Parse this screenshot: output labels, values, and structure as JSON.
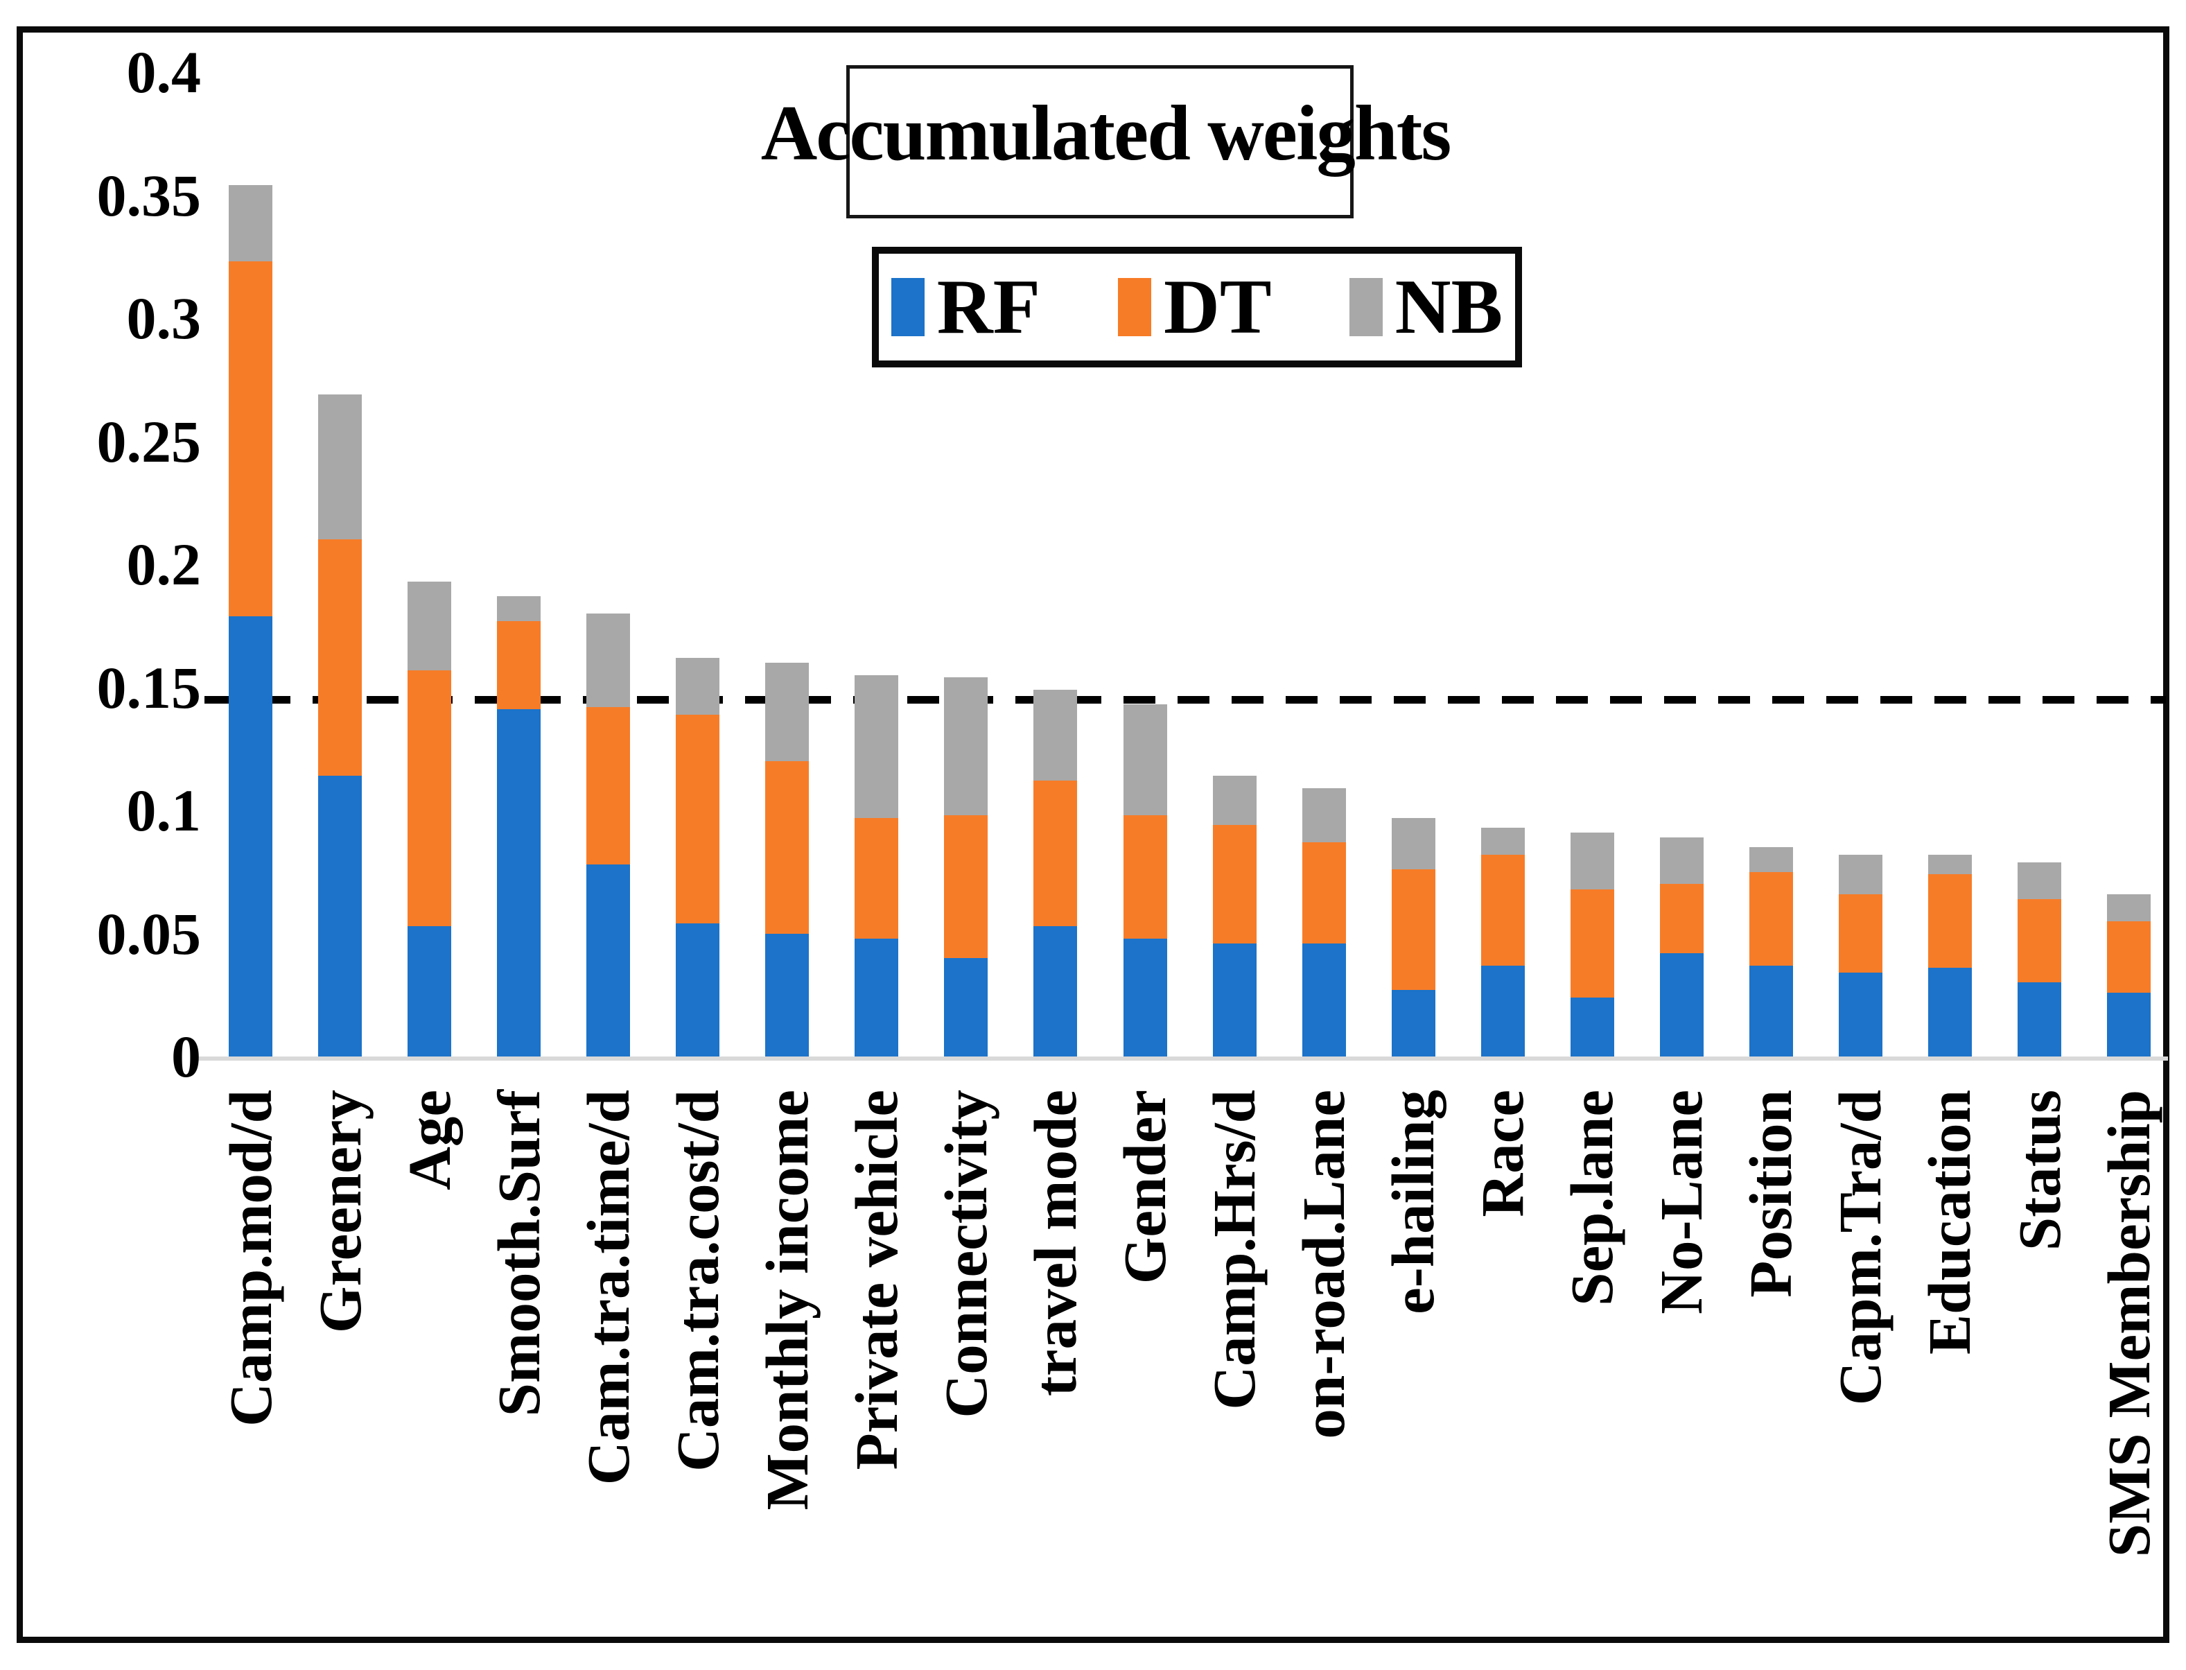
{
  "chart_data": {
    "type": "bar",
    "stacked": true,
    "title": "Accumulated weights",
    "xlabel": "",
    "ylabel": "",
    "ylim": [
      0,
      0.4
    ],
    "grid": false,
    "ytick_labels": [
      "0.4",
      "0.35",
      "0.3",
      "0.25",
      "0.2",
      "0.15",
      "0.1",
      "0.05",
      "0"
    ],
    "ytick_values": [
      0.4,
      0.35,
      0.3,
      0.25,
      0.2,
      0.15,
      0.1,
      0.05,
      0
    ],
    "threshold_line": {
      "value": 0.145,
      "style": "dashed",
      "color": "#000000"
    },
    "legend_position": "top-center",
    "categories": [
      "Camp.mod/d",
      "Greenery",
      "Age",
      "Smooth.Surf",
      "Cam.tra.time/d",
      "Cam.tra.cost/d",
      "Monthly income",
      "Private vehicle",
      "Connectivity",
      "travel mode",
      "Gender",
      "Camp.Hrs/d",
      "on-road.Lane",
      "e-hailing",
      "Race",
      "Sep.lane",
      "No-Lane",
      "Position",
      "Capm.Tra/d",
      "Education",
      "Status",
      "SMS Membership"
    ],
    "series": [
      {
        "name": "RF",
        "color": "#1c73c9",
        "values": [
          0.179,
          0.114,
          0.053,
          0.141,
          0.078,
          0.054,
          0.05,
          0.048,
          0.04,
          0.053,
          0.048,
          0.046,
          0.046,
          0.027,
          0.037,
          0.024,
          0.042,
          0.037,
          0.034,
          0.036,
          0.03,
          0.026
        ]
      },
      {
        "name": "DT",
        "color": "#f77c27",
        "values": [
          0.144,
          0.096,
          0.104,
          0.036,
          0.064,
          0.085,
          0.07,
          0.049,
          0.058,
          0.059,
          0.05,
          0.048,
          0.041,
          0.049,
          0.045,
          0.044,
          0.028,
          0.038,
          0.032,
          0.038,
          0.034,
          0.029
        ]
      },
      {
        "name": "NB",
        "color": "#a8a8a8",
        "values": [
          0.031,
          0.059,
          0.036,
          0.01,
          0.038,
          0.023,
          0.04,
          0.058,
          0.056,
          0.037,
          0.045,
          0.02,
          0.022,
          0.021,
          0.011,
          0.023,
          0.019,
          0.01,
          0.016,
          0.008,
          0.015,
          0.011
        ]
      }
    ],
    "axis_line_color": "#d9d9d9"
  }
}
